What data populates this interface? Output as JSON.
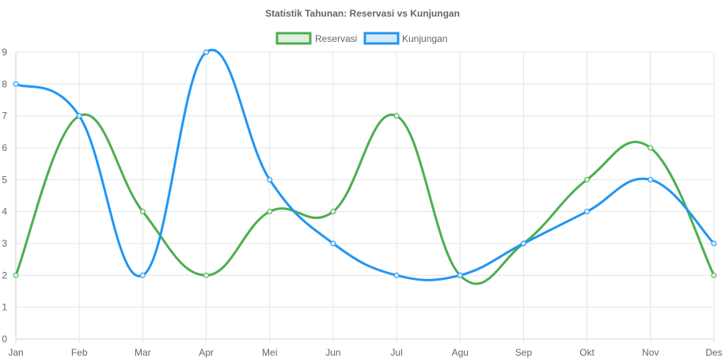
{
  "chart_data": {
    "type": "line",
    "title": "Statistik Tahunan: Reservasi vs Kunjungan",
    "categories": [
      "Jan",
      "Feb",
      "Mar",
      "Apr",
      "Mei",
      "Jun",
      "Jul",
      "Agu",
      "Sep",
      "Okt",
      "Nov",
      "Des"
    ],
    "series": [
      {
        "name": "Reservasi",
        "color": "#4caf50",
        "fill": "#dff0de",
        "values": [
          2,
          7,
          4,
          2,
          4,
          4,
          7,
          2,
          3,
          5,
          6,
          2
        ]
      },
      {
        "name": "Kunjungan",
        "color": "#2196f3",
        "fill": "#d6ebfb",
        "values": [
          8,
          7,
          2,
          9,
          5,
          3,
          2,
          2,
          3,
          4,
          5,
          3
        ]
      }
    ],
    "yticks": [
      "0",
      "1",
      "2",
      "3",
      "4",
      "5",
      "6",
      "7",
      "8",
      "9"
    ],
    "ylim": [
      0,
      9
    ],
    "grid": true,
    "legend_position": "top-center",
    "curve": "smooth"
  }
}
